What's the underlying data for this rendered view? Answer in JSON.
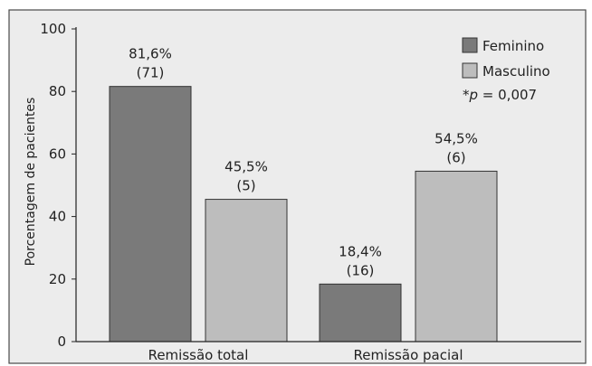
{
  "colors": {
    "background": "#ffffff",
    "plot_background": "#ececec",
    "frame": "#4a4a4a",
    "axis": "#222222"
  },
  "annotation_text": "*p = 0,007",
  "chart_data": {
    "type": "bar",
    "ylabel": "Porcentagem de pacientes",
    "xlabel": "",
    "ylim": [
      0,
      100
    ],
    "yticks": [
      0,
      20,
      40,
      60,
      80,
      100
    ],
    "categories": [
      "Remissão total",
      "Remissão pacial"
    ],
    "legend_position": "top-right",
    "grid": false,
    "series": [
      {
        "name": "Feminino",
        "color": "#7a7a7a",
        "values": [
          81.6,
          18.4
        ],
        "labels": [
          "81,6%",
          "18,4%"
        ],
        "counts": [
          "(71)",
          "(16)"
        ]
      },
      {
        "name": "Masculino",
        "color": "#bdbdbd",
        "values": [
          45.5,
          54.5
        ],
        "labels": [
          "45,5%",
          "54,5%"
        ],
        "counts": [
          "(5)",
          "(6)"
        ]
      }
    ]
  }
}
